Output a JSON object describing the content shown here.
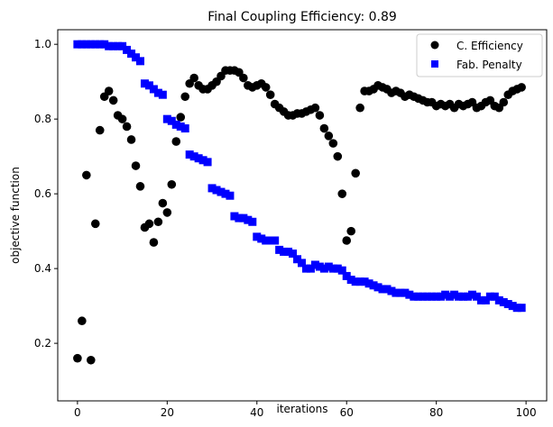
{
  "chart_data": {
    "type": "scatter",
    "title": "Final Coupling Efficiency: 0.89",
    "xlabel": "iterations",
    "ylabel": "objective function",
    "xlim": [
      -4.4,
      104.6
    ],
    "ylim": [
      0.046,
      1.039
    ],
    "xticks": [
      0,
      20,
      40,
      60,
      80,
      100
    ],
    "yticks": [
      0.2,
      0.4,
      0.6,
      0.8,
      1.0
    ],
    "ytick_labels": [
      "0.2",
      "0.4",
      "0.6",
      "0.8",
      "1.0"
    ],
    "grid": false,
    "legend_placement": "top-right",
    "series": [
      {
        "name": "C. Efficiency",
        "marker": "circle",
        "color": "#000000",
        "values": [
          0.16,
          0.26,
          0.65,
          0.155,
          0.52,
          0.77,
          0.86,
          0.875,
          0.85,
          0.81,
          0.8,
          0.78,
          0.745,
          0.675,
          0.62,
          0.51,
          0.52,
          0.47,
          0.525,
          0.575,
          0.55,
          0.625,
          0.74,
          0.805,
          0.86,
          0.895,
          0.91,
          0.89,
          0.88,
          0.88,
          0.89,
          0.9,
          0.915,
          0.93,
          0.93,
          0.93,
          0.925,
          0.91,
          0.89,
          0.885,
          0.89,
          0.895,
          0.885,
          0.865,
          0.84,
          0.83,
          0.82,
          0.81,
          0.81,
          0.815,
          0.815,
          0.82,
          0.825,
          0.83,
          0.81,
          0.775,
          0.755,
          0.735,
          0.7,
          0.6,
          0.475,
          0.5,
          0.655,
          0.83,
          0.875,
          0.875,
          0.88,
          0.89,
          0.885,
          0.88,
          0.87,
          0.875,
          0.87,
          0.86,
          0.865,
          0.86,
          0.855,
          0.85,
          0.845,
          0.845,
          0.835,
          0.84,
          0.835,
          0.84,
          0.83,
          0.84,
          0.835,
          0.84,
          0.845,
          0.83,
          0.835,
          0.845,
          0.85,
          0.835,
          0.83,
          0.845,
          0.865,
          0.875,
          0.88,
          0.885
        ]
      },
      {
        "name": "Fab. Penalty",
        "marker": "square",
        "color": "#0000ff",
        "values": [
          1.0,
          1.0,
          1.0,
          1.0,
          1.0,
          1.0,
          1.0,
          0.995,
          0.995,
          0.995,
          0.995,
          0.985,
          0.975,
          0.965,
          0.955,
          0.895,
          0.89,
          0.88,
          0.87,
          0.865,
          0.8,
          0.795,
          0.785,
          0.78,
          0.775,
          0.705,
          0.7,
          0.695,
          0.69,
          0.685,
          0.615,
          0.61,
          0.605,
          0.6,
          0.595,
          0.54,
          0.535,
          0.535,
          0.53,
          0.525,
          0.485,
          0.48,
          0.475,
          0.475,
          0.475,
          0.45,
          0.445,
          0.445,
          0.44,
          0.425,
          0.415,
          0.4,
          0.4,
          0.41,
          0.405,
          0.4,
          0.405,
          0.4,
          0.4,
          0.395,
          0.38,
          0.37,
          0.365,
          0.365,
          0.365,
          0.36,
          0.355,
          0.35,
          0.345,
          0.345,
          0.34,
          0.335,
          0.335,
          0.335,
          0.33,
          0.325,
          0.325,
          0.325,
          0.325,
          0.325,
          0.325,
          0.325,
          0.33,
          0.325,
          0.33,
          0.325,
          0.325,
          0.325,
          0.33,
          0.325,
          0.315,
          0.315,
          0.325,
          0.325,
          0.315,
          0.31,
          0.305,
          0.3,
          0.295,
          0.295
        ]
      }
    ]
  }
}
